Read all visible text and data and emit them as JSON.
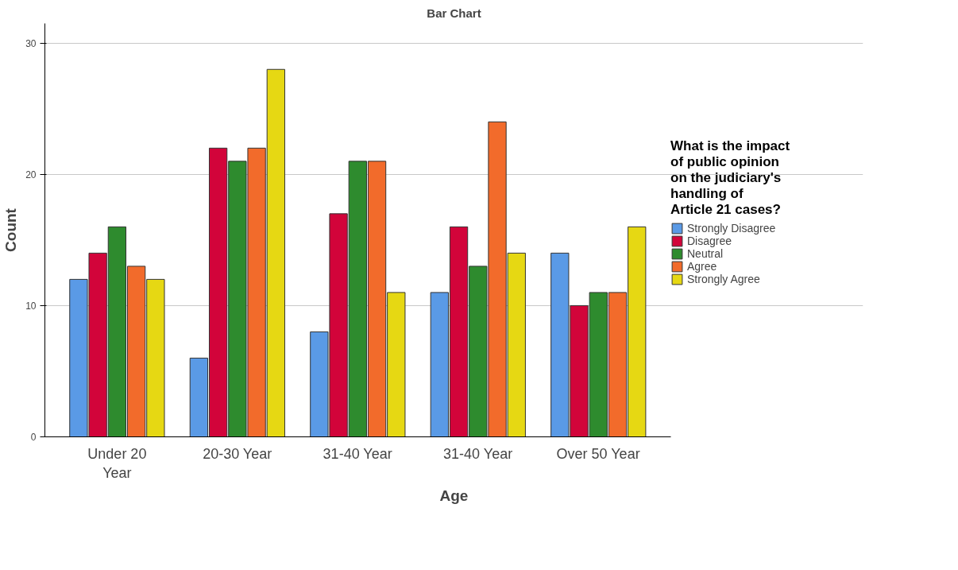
{
  "chart_data": {
    "type": "bar",
    "title": "Bar Chart",
    "xlabel": "Age",
    "ylabel": "Count",
    "legend_title": "What is the impact of public opinion on the judiciary's handling of Article 21 cases?",
    "categories": [
      "Under 20 Year",
      "20-30 Year",
      "31-40 Year",
      "31-40 Year",
      "Over 50 Year"
    ],
    "series": [
      {
        "name": "Strongly Disagree",
        "color": "#5a9ae6",
        "values": [
          12,
          6,
          8,
          11,
          14
        ]
      },
      {
        "name": "Disagree",
        "color": "#d2043a",
        "values": [
          14,
          22,
          17,
          16,
          10
        ]
      },
      {
        "name": "Neutral",
        "color": "#2e8b2e",
        "values": [
          16,
          21,
          21,
          13,
          11
        ]
      },
      {
        "name": "Agree",
        "color": "#f26b2b",
        "values": [
          13,
          22,
          21,
          24,
          11
        ]
      },
      {
        "name": "Strongly Agree",
        "color": "#e6d813",
        "values": [
          12,
          28,
          11,
          14,
          16
        ]
      }
    ],
    "ylim": [
      0,
      31.5
    ],
    "yticks": [
      0,
      10,
      20,
      30
    ],
    "grid": "y",
    "legend": "right"
  }
}
